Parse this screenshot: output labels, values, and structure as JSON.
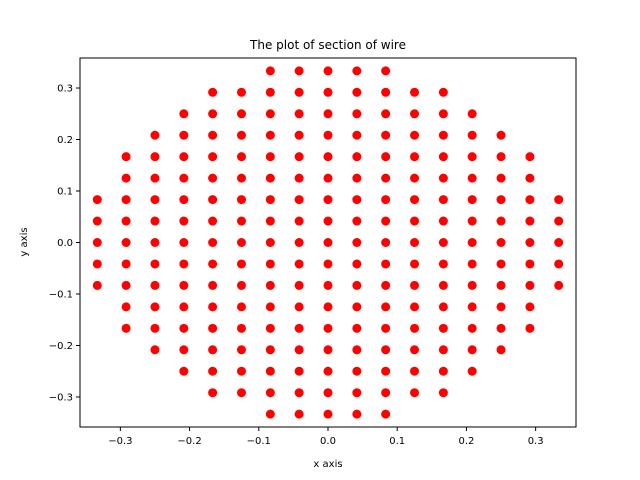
{
  "chart_data": {
    "type": "scatter",
    "title": "The plot of section of wire",
    "xlabel": "x axis",
    "ylabel": "y axis",
    "xlim": [
      -0.3583,
      0.3583
    ],
    "ylim": [
      -0.3583,
      0.3583
    ],
    "xticks": [
      -0.3,
      -0.2,
      -0.1,
      0.0,
      0.1,
      0.2,
      0.3
    ],
    "yticks": [
      -0.3,
      -0.2,
      -0.1,
      0.0,
      0.1,
      0.2,
      0.3
    ],
    "xtick_labels": [
      "−0.3",
      "−0.2",
      "−0.1",
      "0.0",
      "0.1",
      "0.2",
      "0.3"
    ],
    "ytick_labels": [
      "−0.3",
      "−0.2",
      "−0.1",
      "0.0",
      "0.1",
      "0.2",
      "0.3"
    ],
    "grid": false,
    "marker_color": "#ff0000",
    "series": [
      {
        "points": [
          [
            -0.3333,
            -0.0833
          ],
          [
            -0.3333,
            -0.0417
          ],
          [
            -0.3333,
            0.0
          ],
          [
            -0.3333,
            0.0417
          ],
          [
            -0.3333,
            0.0833
          ],
          [
            -0.2917,
            -0.1667
          ],
          [
            -0.2917,
            -0.125
          ],
          [
            -0.2917,
            -0.0833
          ],
          [
            -0.2917,
            -0.0417
          ],
          [
            -0.2917,
            0.0
          ],
          [
            -0.2917,
            0.0417
          ],
          [
            -0.2917,
            0.0833
          ],
          [
            -0.2917,
            0.125
          ],
          [
            -0.2917,
            0.1667
          ],
          [
            -0.25,
            -0.2083
          ],
          [
            -0.25,
            -0.1667
          ],
          [
            -0.25,
            -0.125
          ],
          [
            -0.25,
            -0.0833
          ],
          [
            -0.25,
            -0.0417
          ],
          [
            -0.25,
            0.0
          ],
          [
            -0.25,
            0.0417
          ],
          [
            -0.25,
            0.0833
          ],
          [
            -0.25,
            0.125
          ],
          [
            -0.25,
            0.1667
          ],
          [
            -0.25,
            0.2083
          ],
          [
            -0.2083,
            -0.25
          ],
          [
            -0.2083,
            -0.2083
          ],
          [
            -0.2083,
            -0.1667
          ],
          [
            -0.2083,
            -0.125
          ],
          [
            -0.2083,
            -0.0833
          ],
          [
            -0.2083,
            -0.0417
          ],
          [
            -0.2083,
            0.0
          ],
          [
            -0.2083,
            0.0417
          ],
          [
            -0.2083,
            0.0833
          ],
          [
            -0.2083,
            0.125
          ],
          [
            -0.2083,
            0.1667
          ],
          [
            -0.2083,
            0.2083
          ],
          [
            -0.2083,
            0.25
          ],
          [
            -0.1667,
            -0.2917
          ],
          [
            -0.1667,
            -0.25
          ],
          [
            -0.1667,
            -0.2083
          ],
          [
            -0.1667,
            -0.1667
          ],
          [
            -0.1667,
            -0.125
          ],
          [
            -0.1667,
            -0.0833
          ],
          [
            -0.1667,
            -0.0417
          ],
          [
            -0.1667,
            0.0
          ],
          [
            -0.1667,
            0.0417
          ],
          [
            -0.1667,
            0.0833
          ],
          [
            -0.1667,
            0.125
          ],
          [
            -0.1667,
            0.1667
          ],
          [
            -0.1667,
            0.2083
          ],
          [
            -0.1667,
            0.25
          ],
          [
            -0.1667,
            0.2917
          ],
          [
            -0.125,
            -0.2917
          ],
          [
            -0.125,
            -0.25
          ],
          [
            -0.125,
            -0.2083
          ],
          [
            -0.125,
            -0.1667
          ],
          [
            -0.125,
            -0.125
          ],
          [
            -0.125,
            -0.0833
          ],
          [
            -0.125,
            -0.0417
          ],
          [
            -0.125,
            0.0
          ],
          [
            -0.125,
            0.0417
          ],
          [
            -0.125,
            0.0833
          ],
          [
            -0.125,
            0.125
          ],
          [
            -0.125,
            0.1667
          ],
          [
            -0.125,
            0.2083
          ],
          [
            -0.125,
            0.25
          ],
          [
            -0.125,
            0.2917
          ],
          [
            -0.0833,
            -0.3333
          ],
          [
            -0.0833,
            -0.2917
          ],
          [
            -0.0833,
            -0.25
          ],
          [
            -0.0833,
            -0.2083
          ],
          [
            -0.0833,
            -0.1667
          ],
          [
            -0.0833,
            -0.125
          ],
          [
            -0.0833,
            -0.0833
          ],
          [
            -0.0833,
            -0.0417
          ],
          [
            -0.0833,
            0.0
          ],
          [
            -0.0833,
            0.0417
          ],
          [
            -0.0833,
            0.0833
          ],
          [
            -0.0833,
            0.125
          ],
          [
            -0.0833,
            0.1667
          ],
          [
            -0.0833,
            0.2083
          ],
          [
            -0.0833,
            0.25
          ],
          [
            -0.0833,
            0.2917
          ],
          [
            -0.0833,
            0.3333
          ],
          [
            -0.0417,
            -0.3333
          ],
          [
            -0.0417,
            -0.2917
          ],
          [
            -0.0417,
            -0.25
          ],
          [
            -0.0417,
            -0.2083
          ],
          [
            -0.0417,
            -0.1667
          ],
          [
            -0.0417,
            -0.125
          ],
          [
            -0.0417,
            -0.0833
          ],
          [
            -0.0417,
            -0.0417
          ],
          [
            -0.0417,
            0.0
          ],
          [
            -0.0417,
            0.0417
          ],
          [
            -0.0417,
            0.0833
          ],
          [
            -0.0417,
            0.125
          ],
          [
            -0.0417,
            0.1667
          ],
          [
            -0.0417,
            0.2083
          ],
          [
            -0.0417,
            0.25
          ],
          [
            -0.0417,
            0.2917
          ],
          [
            -0.0417,
            0.3333
          ],
          [
            0.0,
            -0.3333
          ],
          [
            0.0,
            -0.2917
          ],
          [
            0.0,
            -0.25
          ],
          [
            0.0,
            -0.2083
          ],
          [
            0.0,
            -0.1667
          ],
          [
            0.0,
            -0.125
          ],
          [
            0.0,
            -0.0833
          ],
          [
            0.0,
            -0.0417
          ],
          [
            0.0,
            0.0
          ],
          [
            0.0,
            0.0417
          ],
          [
            0.0,
            0.0833
          ],
          [
            0.0,
            0.125
          ],
          [
            0.0,
            0.1667
          ],
          [
            0.0,
            0.2083
          ],
          [
            0.0,
            0.25
          ],
          [
            0.0,
            0.2917
          ],
          [
            0.0,
            0.3333
          ],
          [
            0.0417,
            -0.3333
          ],
          [
            0.0417,
            -0.2917
          ],
          [
            0.0417,
            -0.25
          ],
          [
            0.0417,
            -0.2083
          ],
          [
            0.0417,
            -0.1667
          ],
          [
            0.0417,
            -0.125
          ],
          [
            0.0417,
            -0.0833
          ],
          [
            0.0417,
            -0.0417
          ],
          [
            0.0417,
            0.0
          ],
          [
            0.0417,
            0.0417
          ],
          [
            0.0417,
            0.0833
          ],
          [
            0.0417,
            0.125
          ],
          [
            0.0417,
            0.1667
          ],
          [
            0.0417,
            0.2083
          ],
          [
            0.0417,
            0.25
          ],
          [
            0.0417,
            0.2917
          ],
          [
            0.0417,
            0.3333
          ],
          [
            0.0833,
            -0.3333
          ],
          [
            0.0833,
            -0.2917
          ],
          [
            0.0833,
            -0.25
          ],
          [
            0.0833,
            -0.2083
          ],
          [
            0.0833,
            -0.1667
          ],
          [
            0.0833,
            -0.125
          ],
          [
            0.0833,
            -0.0833
          ],
          [
            0.0833,
            -0.0417
          ],
          [
            0.0833,
            0.0
          ],
          [
            0.0833,
            0.0417
          ],
          [
            0.0833,
            0.0833
          ],
          [
            0.0833,
            0.125
          ],
          [
            0.0833,
            0.1667
          ],
          [
            0.0833,
            0.2083
          ],
          [
            0.0833,
            0.25
          ],
          [
            0.0833,
            0.2917
          ],
          [
            0.0833,
            0.3333
          ],
          [
            0.125,
            -0.2917
          ],
          [
            0.125,
            -0.25
          ],
          [
            0.125,
            -0.2083
          ],
          [
            0.125,
            -0.1667
          ],
          [
            0.125,
            -0.125
          ],
          [
            0.125,
            -0.0833
          ],
          [
            0.125,
            -0.0417
          ],
          [
            0.125,
            0.0
          ],
          [
            0.125,
            0.0417
          ],
          [
            0.125,
            0.0833
          ],
          [
            0.125,
            0.125
          ],
          [
            0.125,
            0.1667
          ],
          [
            0.125,
            0.2083
          ],
          [
            0.125,
            0.25
          ],
          [
            0.125,
            0.2917
          ],
          [
            0.1667,
            -0.2917
          ],
          [
            0.1667,
            -0.25
          ],
          [
            0.1667,
            -0.2083
          ],
          [
            0.1667,
            -0.1667
          ],
          [
            0.1667,
            -0.125
          ],
          [
            0.1667,
            -0.0833
          ],
          [
            0.1667,
            -0.0417
          ],
          [
            0.1667,
            0.0
          ],
          [
            0.1667,
            0.0417
          ],
          [
            0.1667,
            0.0833
          ],
          [
            0.1667,
            0.125
          ],
          [
            0.1667,
            0.1667
          ],
          [
            0.1667,
            0.2083
          ],
          [
            0.1667,
            0.25
          ],
          [
            0.1667,
            0.2917
          ],
          [
            0.2083,
            -0.25
          ],
          [
            0.2083,
            -0.2083
          ],
          [
            0.2083,
            -0.1667
          ],
          [
            0.2083,
            -0.125
          ],
          [
            0.2083,
            -0.0833
          ],
          [
            0.2083,
            -0.0417
          ],
          [
            0.2083,
            0.0
          ],
          [
            0.2083,
            0.0417
          ],
          [
            0.2083,
            0.0833
          ],
          [
            0.2083,
            0.125
          ],
          [
            0.2083,
            0.1667
          ],
          [
            0.2083,
            0.2083
          ],
          [
            0.2083,
            0.25
          ],
          [
            0.25,
            -0.2083
          ],
          [
            0.25,
            -0.1667
          ],
          [
            0.25,
            -0.125
          ],
          [
            0.25,
            -0.0833
          ],
          [
            0.25,
            -0.0417
          ],
          [
            0.25,
            0.0
          ],
          [
            0.25,
            0.0417
          ],
          [
            0.25,
            0.0833
          ],
          [
            0.25,
            0.125
          ],
          [
            0.25,
            0.1667
          ],
          [
            0.25,
            0.2083
          ],
          [
            0.2917,
            -0.1667
          ],
          [
            0.2917,
            -0.125
          ],
          [
            0.2917,
            -0.0833
          ],
          [
            0.2917,
            -0.0417
          ],
          [
            0.2917,
            0.0
          ],
          [
            0.2917,
            0.0417
          ],
          [
            0.2917,
            0.0833
          ],
          [
            0.2917,
            0.125
          ],
          [
            0.2917,
            0.1667
          ],
          [
            0.3333,
            -0.0833
          ],
          [
            0.3333,
            -0.0417
          ],
          [
            0.3333,
            0.0
          ],
          [
            0.3333,
            0.0417
          ],
          [
            0.3333,
            0.0833
          ]
        ]
      }
    ]
  }
}
